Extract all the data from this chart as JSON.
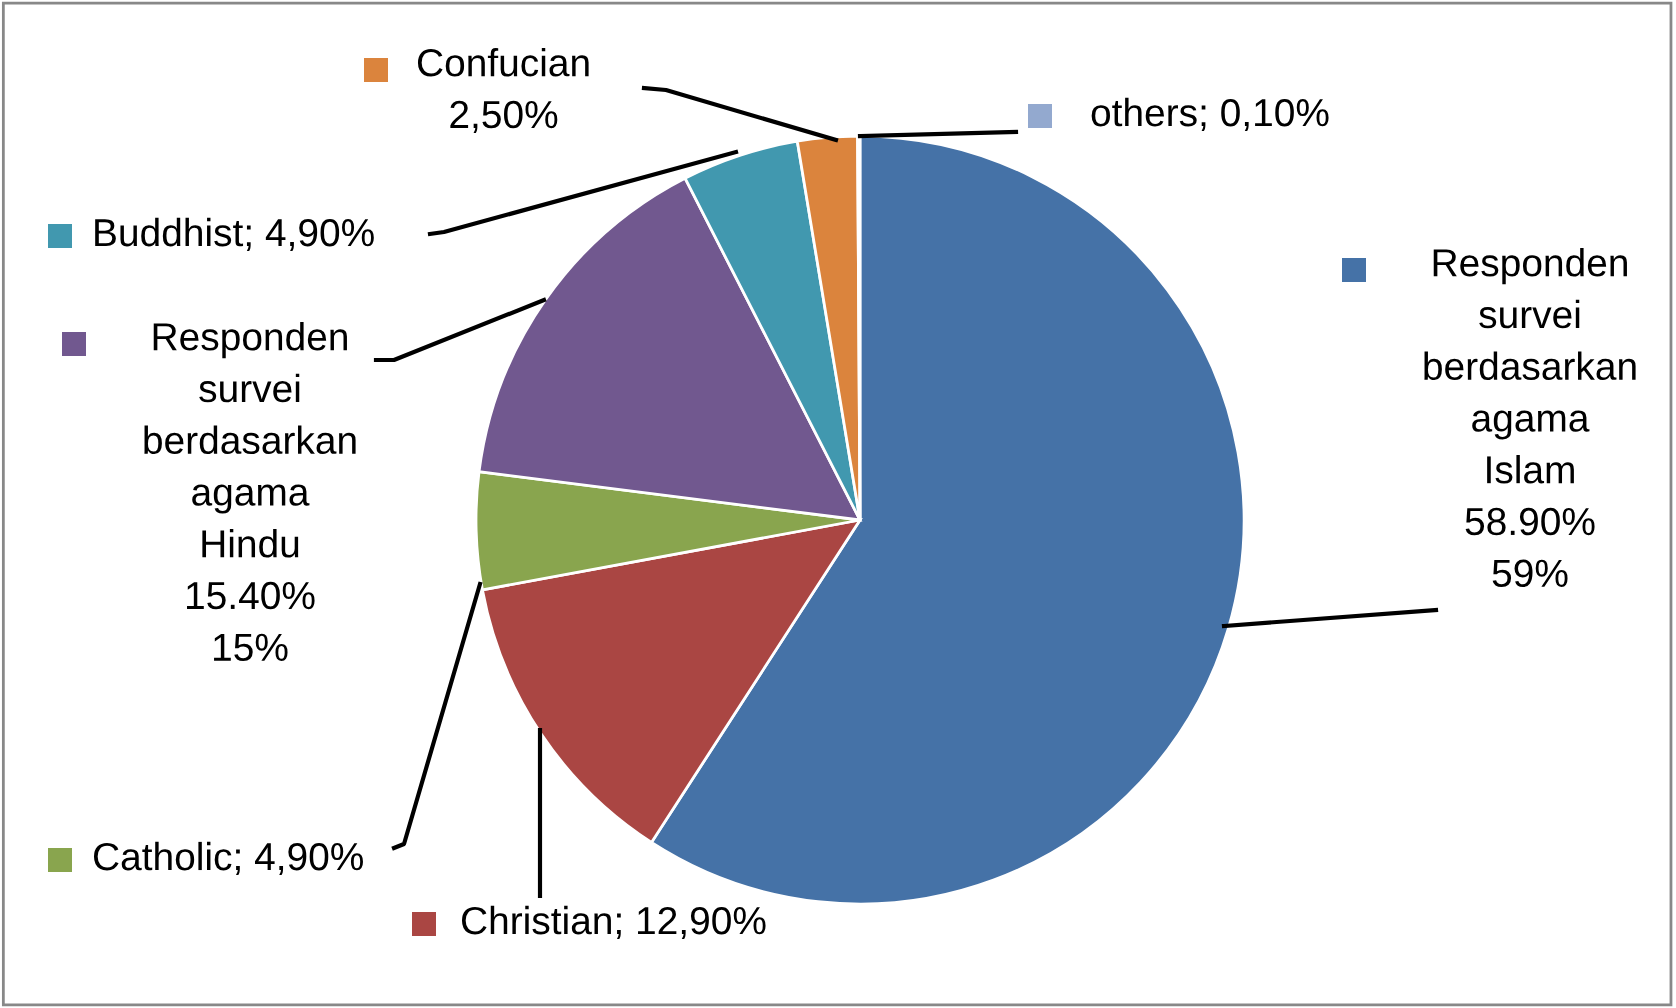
{
  "chart_data": {
    "type": "pie",
    "categories": [
      "Responden survei berdasarkan agama Islam",
      "Christian",
      "Catholic",
      "Responden survei berdasarkan agama Hindu",
      "Buddhist",
      "Confucian",
      "others"
    ],
    "values": [
      58.9,
      12.9,
      4.9,
      15.4,
      4.9,
      2.5,
      0.1
    ],
    "colors": [
      "#4572a7",
      "#aa4643",
      "#89a54e",
      "#71588f",
      "#4198af",
      "#db843d",
      "#93a9cf"
    ],
    "value_labels": [
      "58.90%\n59%",
      "12,90%",
      "4,90%",
      "15.40%\n15%",
      "4,90%",
      "2,50%",
      "0,10%"
    ],
    "legend": "left"
  }
}
